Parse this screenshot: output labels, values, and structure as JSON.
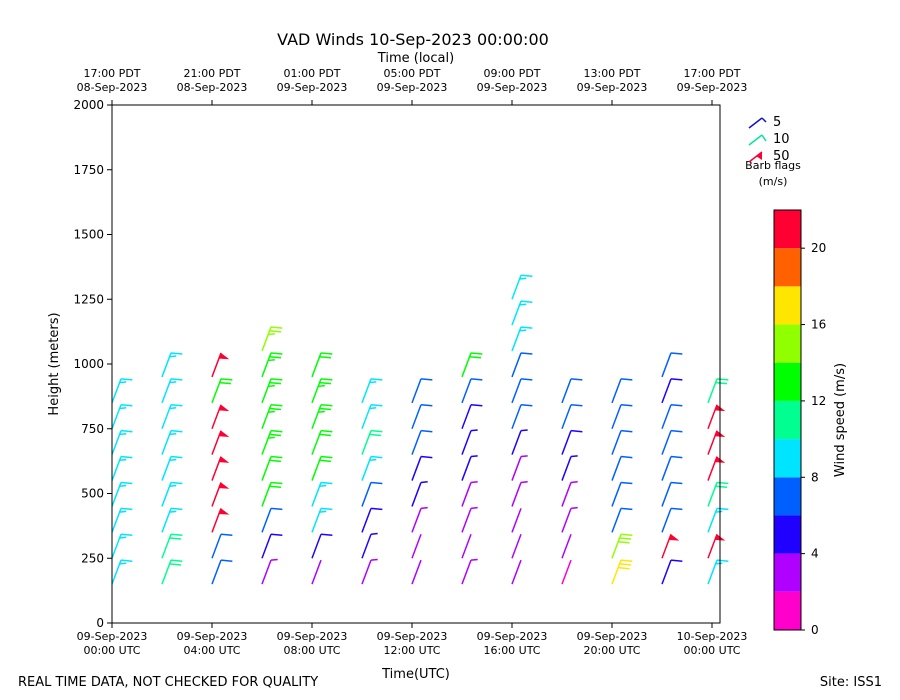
{
  "chart_data": {
    "type": "barbs",
    "title": "VAD Winds 10-Sep-2023 00:00:00",
    "top_axis_label": "Time (local)",
    "xlabel": "Time(UTC)",
    "ylabel": "Height (meters)",
    "footer_left": "REAL TIME DATA, NOT CHECKED FOR QUALITY",
    "footer_right": "Site: ISS1",
    "xlim": [
      0,
      24.32
    ],
    "xticks": [
      {
        "value": 0,
        "label": [
          "09-Sep-2023",
          "00:00 UTC"
        ]
      },
      {
        "value": 4,
        "label": [
          "09-Sep-2023",
          "04:00 UTC"
        ]
      },
      {
        "value": 8,
        "label": [
          "09-Sep-2023",
          "08:00 UTC"
        ]
      },
      {
        "value": 12,
        "label": [
          "09-Sep-2023",
          "12:00 UTC"
        ]
      },
      {
        "value": 16,
        "label": [
          "09-Sep-2023",
          "16:00 UTC"
        ]
      },
      {
        "value": 20,
        "label": [
          "09-Sep-2023",
          "20:00 UTC"
        ]
      },
      {
        "value": 24,
        "label": [
          "10-Sep-2023",
          "00:00 UTC"
        ]
      }
    ],
    "top_xticks": [
      {
        "value": 0,
        "label": [
          "17:00 PDT",
          "08-Sep-2023"
        ]
      },
      {
        "value": 4,
        "label": [
          "21:00 PDT",
          "08-Sep-2023"
        ]
      },
      {
        "value": 8,
        "label": [
          "01:00 PDT",
          "09-Sep-2023"
        ]
      },
      {
        "value": 12,
        "label": [
          "05:00 PDT",
          "09-Sep-2023"
        ]
      },
      {
        "value": 16,
        "label": [
          "09:00 PDT",
          "09-Sep-2023"
        ]
      },
      {
        "value": 20,
        "label": [
          "13:00 PDT",
          "09-Sep-2023"
        ]
      },
      {
        "value": 24,
        "label": [
          "17:00 PDT",
          "09-Sep-2023"
        ]
      }
    ],
    "ylim": [
      0,
      2000
    ],
    "yticks": [
      0,
      250,
      500,
      750,
      1000,
      1250,
      1500,
      1750,
      2000
    ],
    "heights": [
      150,
      250,
      350,
      450,
      550,
      650,
      750,
      850,
      950,
      1050,
      1150,
      1250
    ],
    "columns": [
      {
        "x": 0,
        "speeds": [
          9,
          9,
          9,
          9,
          9,
          9,
          9,
          9,
          null,
          null,
          null,
          null
        ]
      },
      {
        "x": 2,
        "speeds": [
          10,
          10,
          9,
          9,
          9,
          9,
          9,
          9,
          9,
          null,
          null,
          null
        ]
      },
      {
        "x": 4,
        "speeds": [
          6,
          6,
          22,
          22,
          22,
          22,
          22,
          12,
          22,
          null,
          null,
          null
        ]
      },
      {
        "x": 6,
        "speeds": [
          3,
          5,
          6,
          12,
          12,
          13,
          13,
          13,
          13,
          14,
          null,
          null
        ]
      },
      {
        "x": 8,
        "speeds": [
          2,
          5,
          8,
          9,
          12,
          12,
          13,
          13,
          12,
          null,
          null,
          null
        ]
      },
      {
        "x": 10,
        "speeds": [
          3,
          4,
          5,
          6,
          8,
          10,
          9,
          9,
          null,
          null,
          null,
          null
        ]
      },
      {
        "x": 12,
        "speeds": [
          2,
          2,
          3,
          4,
          5,
          6,
          6,
          6,
          null,
          null,
          null,
          null
        ]
      },
      {
        "x": 14,
        "speeds": [
          3,
          2,
          3,
          3,
          4,
          4,
          5,
          7,
          12,
          null,
          null,
          null
        ]
      },
      {
        "x": 16,
        "speeds": [
          2,
          2,
          2,
          3,
          3,
          4,
          6,
          7,
          7,
          8,
          8,
          8
        ]
      },
      {
        "x": 18,
        "speeds": [
          1,
          2,
          3,
          3,
          4,
          5,
          6,
          6,
          null,
          null,
          null,
          null
        ]
      },
      {
        "x": 20,
        "speeds": [
          16,
          15,
          7,
          6,
          6,
          6,
          6,
          7,
          null,
          null,
          null,
          null
        ]
      },
      {
        "x": 22,
        "speeds": [
          5,
          22,
          7,
          6,
          6,
          6,
          6,
          5,
          7,
          null,
          null,
          null
        ]
      },
      {
        "x": 24,
        "speeds": [
          8,
          22,
          9,
          10,
          22,
          22,
          22,
          10,
          null,
          null,
          null,
          null
        ]
      }
    ],
    "colorbar": {
      "label": "Wind speed (m/s)",
      "bounds": [
        0,
        2,
        4,
        6,
        8,
        10,
        12,
        14,
        16,
        18,
        20,
        22
      ],
      "colors": [
        "#ff00cc",
        "#b000ff",
        "#2000ff",
        "#0060ff",
        "#00e5ff",
        "#00ff90",
        "#00ff00",
        "#90ff00",
        "#ffe600",
        "#ff6000",
        "#ff0033"
      ],
      "ticks": [
        0,
        4,
        8,
        12,
        16,
        20
      ]
    },
    "barb_legend": {
      "title": [
        "Barb flags",
        "(m/s)"
      ],
      "items": [
        {
          "value": 5,
          "color": "#1010cc"
        },
        {
          "value": 10,
          "color": "#00e5a0"
        },
        {
          "value": 50,
          "color": "#ff0033"
        }
      ]
    }
  }
}
